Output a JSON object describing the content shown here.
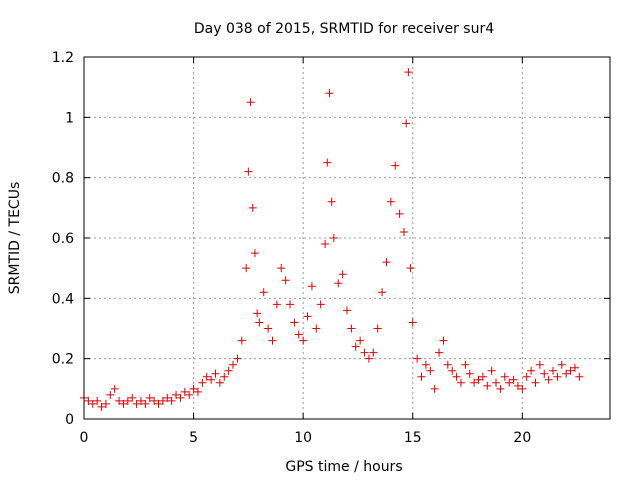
{
  "chart_data": {
    "type": "scatter",
    "title": "Day 038 of 2015, SRMTID for receiver sur4",
    "xlabel": "GPS time / hours",
    "ylabel": "SRMTID / TECUs",
    "xlim": [
      0,
      24
    ],
    "ylim": [
      0,
      1.2
    ],
    "xticks": [
      "0",
      "5",
      "10",
      "15",
      "20"
    ],
    "yticks": [
      "0",
      "0.2",
      "0.4",
      "0.6",
      "0.8",
      "1",
      "1.2"
    ],
    "grid": true,
    "marker": "+",
    "color": "#e00000",
    "series": [
      {
        "name": "SRMTID",
        "x": [
          0.0,
          0.2,
          0.4,
          0.6,
          0.8,
          1.0,
          1.2,
          1.4,
          1.6,
          1.8,
          2.0,
          2.2,
          2.4,
          2.6,
          2.8,
          3.0,
          3.2,
          3.4,
          3.6,
          3.8,
          4.0,
          4.2,
          4.4,
          4.6,
          4.8,
          5.0,
          5.2,
          5.4,
          5.6,
          5.8,
          6.0,
          6.2,
          6.4,
          6.6,
          6.8,
          7.0,
          7.2,
          7.4,
          7.5,
          7.6,
          7.7,
          7.8,
          7.9,
          8.0,
          8.2,
          8.4,
          8.6,
          8.8,
          9.0,
          9.2,
          9.4,
          9.6,
          9.8,
          10.0,
          10.2,
          10.4,
          10.6,
          10.8,
          11.0,
          11.1,
          11.2,
          11.3,
          11.4,
          11.6,
          11.8,
          12.0,
          12.2,
          12.4,
          12.6,
          12.8,
          13.0,
          13.2,
          13.4,
          13.6,
          13.8,
          14.0,
          14.2,
          14.4,
          14.6,
          14.7,
          14.8,
          14.9,
          15.0,
          15.2,
          15.4,
          15.6,
          15.8,
          16.0,
          16.2,
          16.4,
          16.6,
          16.8,
          17.0,
          17.2,
          17.4,
          17.6,
          17.8,
          18.0,
          18.2,
          18.4,
          18.6,
          18.8,
          19.0,
          19.2,
          19.4,
          19.6,
          19.8,
          20.0,
          20.2,
          20.4,
          20.6,
          20.8,
          21.0,
          21.2,
          21.4,
          21.6,
          21.8,
          22.0,
          22.2,
          22.4,
          22.6
        ],
        "y": [
          0.07,
          0.06,
          0.05,
          0.06,
          0.04,
          0.05,
          0.08,
          0.1,
          0.06,
          0.05,
          0.06,
          0.07,
          0.05,
          0.06,
          0.05,
          0.07,
          0.06,
          0.05,
          0.06,
          0.07,
          0.06,
          0.08,
          0.07,
          0.09,
          0.08,
          0.1,
          0.09,
          0.12,
          0.14,
          0.13,
          0.15,
          0.12,
          0.14,
          0.16,
          0.18,
          0.2,
          0.26,
          0.5,
          0.82,
          1.05,
          0.7,
          0.55,
          0.35,
          0.32,
          0.42,
          0.3,
          0.26,
          0.38,
          0.5,
          0.46,
          0.38,
          0.32,
          0.28,
          0.26,
          0.34,
          0.44,
          0.3,
          0.38,
          0.58,
          0.85,
          1.08,
          0.72,
          0.6,
          0.45,
          0.48,
          0.36,
          0.3,
          0.24,
          0.26,
          0.22,
          0.2,
          0.22,
          0.3,
          0.42,
          0.52,
          0.72,
          0.84,
          0.68,
          0.62,
          0.98,
          1.15,
          0.5,
          0.32,
          0.2,
          0.14,
          0.18,
          0.16,
          0.1,
          0.22,
          0.26,
          0.18,
          0.16,
          0.14,
          0.12,
          0.18,
          0.15,
          0.12,
          0.13,
          0.14,
          0.11,
          0.16,
          0.12,
          0.1,
          0.14,
          0.12,
          0.13,
          0.11,
          0.1,
          0.14,
          0.16,
          0.12,
          0.18,
          0.15,
          0.13,
          0.16,
          0.14,
          0.18,
          0.15,
          0.16,
          0.17,
          0.14
        ]
      }
    ]
  }
}
